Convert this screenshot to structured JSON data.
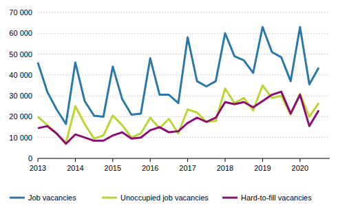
{
  "chart_data": {
    "type": "line",
    "categories": [
      "2013",
      null,
      null,
      null,
      "2014",
      null,
      null,
      null,
      "2015",
      null,
      null,
      null,
      "2016",
      null,
      null,
      null,
      "2017",
      null,
      null,
      null,
      "2018",
      null,
      null,
      null,
      "2019",
      null,
      null,
      null,
      "2020",
      null,
      null
    ],
    "series": [
      {
        "name": "Job vacancies",
        "color": "#2a78a8",
        "values": [
          46000,
          32000,
          23500,
          16500,
          46000,
          27500,
          20500,
          20000,
          44000,
          28500,
          21000,
          21500,
          48000,
          30500,
          30500,
          26500,
          58000,
          37000,
          34500,
          37000,
          60000,
          49000,
          47000,
          41000,
          63000,
          51000,
          48500,
          37000,
          63000,
          35500,
          43500
        ]
      },
      {
        "name": "Unoccupied job vacancies",
        "color": "#b9d532",
        "values": [
          20000,
          16000,
          12000,
          7500,
          25000,
          16500,
          9500,
          11000,
          20500,
          16000,
          10000,
          12000,
          19500,
          14500,
          19000,
          12000,
          23500,
          22000,
          17500,
          18000,
          33500,
          26500,
          29000,
          23000,
          35000,
          29000,
          30000,
          21000,
          31000,
          20000,
          26500
        ]
      },
      {
        "name": "Hard-to-fill vacancies",
        "color": "#8c0c74",
        "values": [
          14500,
          15500,
          12000,
          7000,
          11500,
          10000,
          8500,
          8500,
          11000,
          12500,
          9500,
          10000,
          13500,
          15000,
          12500,
          13000,
          17000,
          19500,
          17500,
          19500,
          27000,
          26000,
          27000,
          24500,
          27500,
          30500,
          32000,
          21500,
          30500,
          15500,
          23000
        ]
      }
    ],
    "ylim": [
      0,
      70000
    ],
    "yticks": [
      {
        "value": 0,
        "label": "0"
      },
      {
        "value": 10000,
        "label": "10 000"
      },
      {
        "value": 20000,
        "label": "20 000"
      },
      {
        "value": 30000,
        "label": "30 000"
      },
      {
        "value": 40000,
        "label": "40 000"
      },
      {
        "value": 50000,
        "label": "50 000"
      },
      {
        "value": 60000,
        "label": "60 000"
      },
      {
        "value": 70000,
        "label": "70 000"
      }
    ],
    "grid": true,
    "legend": "bottom"
  }
}
